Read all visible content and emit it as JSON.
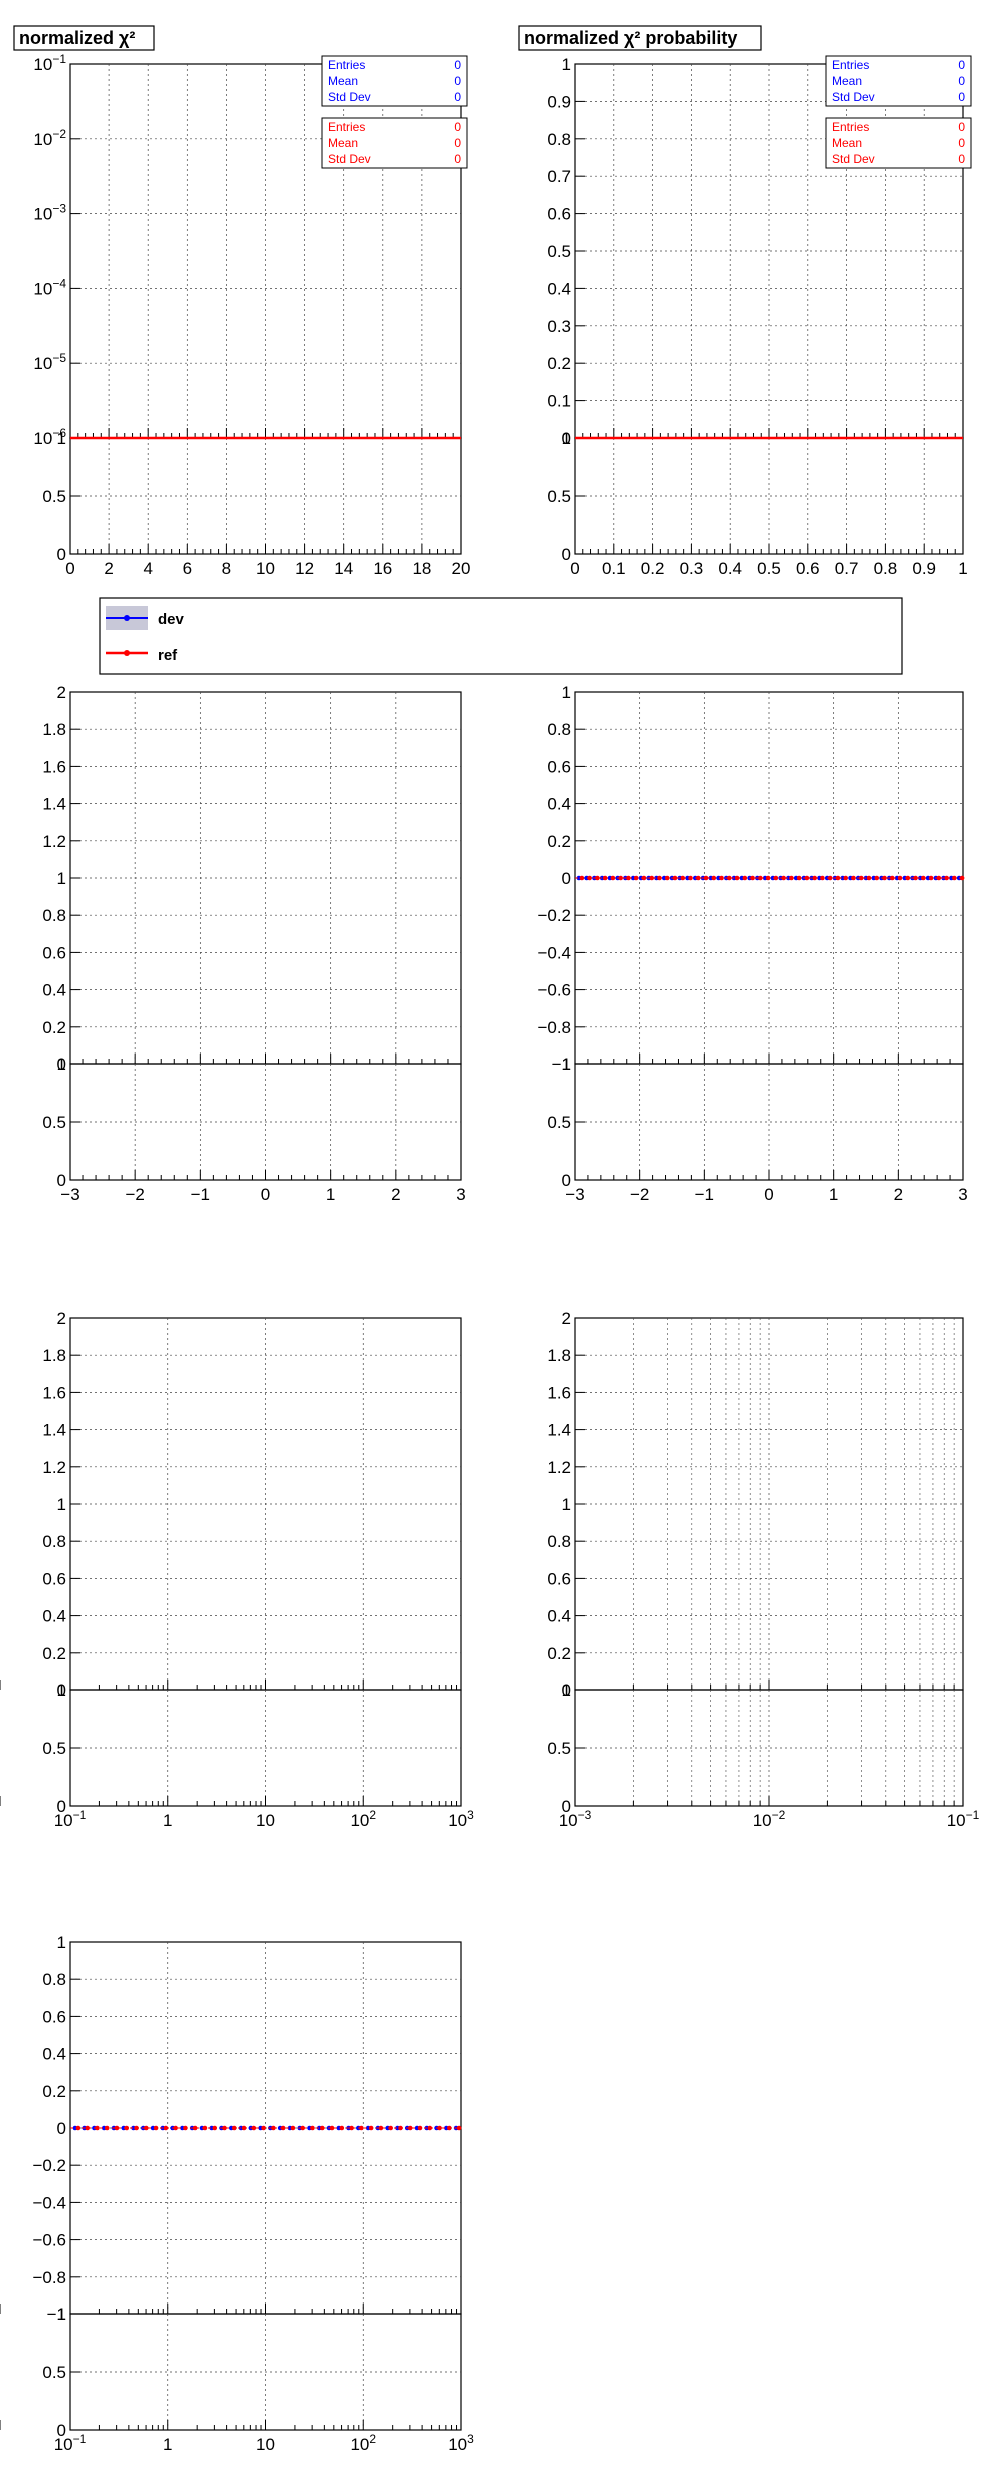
{
  "colors": {
    "dev": "#0000ff",
    "ref": "#ff0000",
    "dev_band": "#c8c8d8",
    "grid": "#444444",
    "frame": "#000000"
  },
  "titles": {
    "panel_1": "normalized χ²",
    "panel_2": "normalized χ² probability"
  },
  "stats_boxes": [
    {
      "panel": 1,
      "dev": [
        [
          "Entries",
          "0"
        ],
        [
          "Mean",
          "0"
        ],
        [
          "Std Dev",
          "0"
        ]
      ],
      "ref": [
        [
          "Entries",
          "0"
        ],
        [
          "Mean",
          "0"
        ],
        [
          "Std Dev",
          "0"
        ]
      ]
    },
    {
      "panel": 2,
      "dev": [
        [
          "Entries",
          "0"
        ],
        [
          "Mean",
          "0"
        ],
        [
          "Std Dev",
          "0"
        ]
      ],
      "ref": [
        [
          "Entries",
          "0"
        ],
        [
          "Mean",
          "0"
        ],
        [
          "Std Dev",
          "0"
        ]
      ]
    }
  ],
  "legend": {
    "entries": [
      {
        "label": "dev",
        "color": "#0000ff",
        "style": "band"
      },
      {
        "label": "ref",
        "color": "#ff0000",
        "style": "line"
      }
    ]
  },
  "chart_data": [
    {
      "id": "p1",
      "type": "line",
      "title": "normalized χ²",
      "x_scale": "linear",
      "xlim": [
        0,
        20
      ],
      "x_ticks": [
        "0",
        "2",
        "4",
        "6",
        "8",
        "10",
        "12",
        "14",
        "16",
        "18",
        "20"
      ],
      "y_scale": "log",
      "ylim": [
        1e-06,
        0.1
      ],
      "y_ticks": [
        "10⁻¹",
        "10⁻²",
        "10⁻³",
        "10⁻⁴",
        "10⁻⁵",
        "10⁻⁶"
      ],
      "ratio_ylim": [
        0,
        1
      ],
      "ratio_ticks": [
        "0",
        "0.5",
        "1"
      ],
      "grid": true,
      "series": [
        {
          "name": "ref",
          "line": "flat",
          "value": 1e-06
        }
      ]
    },
    {
      "id": "p2",
      "type": "line",
      "title": "normalized χ² probability",
      "x_scale": "linear",
      "xlim": [
        0,
        1
      ],
      "x_ticks": [
        "0",
        "0.1",
        "0.2",
        "0.3",
        "0.4",
        "0.5",
        "0.6",
        "0.7",
        "0.8",
        "0.9",
        "1"
      ],
      "y_scale": "linear",
      "ylim": [
        0,
        1
      ],
      "y_ticks": [
        "1",
        "0.9",
        "0.8",
        "0.7",
        "0.6",
        "0.5",
        "0.4",
        "0.3",
        "0.2",
        "0.1",
        "0"
      ],
      "ratio_ylim": [
        0,
        1
      ],
      "ratio_ticks": [
        "0",
        "0.5",
        "1"
      ],
      "grid": true,
      "series": [
        {
          "name": "ref",
          "line": "flat",
          "value": 0
        }
      ]
    },
    {
      "id": "p3",
      "type": "line",
      "x_scale": "linear",
      "xlim": [
        -3,
        3
      ],
      "x_ticks": [
        "−3",
        "−2",
        "−1",
        "0",
        "1",
        "2",
        "3"
      ],
      "y_scale": "linear",
      "ylim": [
        0,
        2
      ],
      "y_ticks": [
        "2",
        "1.8",
        "1.6",
        "1.4",
        "1.2",
        "1",
        "0.8",
        "0.6",
        "0.4",
        "0.2",
        "0"
      ],
      "ratio_ylim": [
        0,
        1
      ],
      "ratio_ticks": [
        "0",
        "0.5",
        "1"
      ],
      "grid": true,
      "series": []
    },
    {
      "id": "p4",
      "type": "scatter",
      "x_scale": "linear",
      "xlim": [
        -3,
        3
      ],
      "x_ticks": [
        "−3",
        "−2",
        "−1",
        "0",
        "1",
        "2",
        "3"
      ],
      "y_scale": "linear",
      "ylim": [
        -1,
        1
      ],
      "y_ticks": [
        "1",
        "0.8",
        "0.6",
        "0.4",
        "0.2",
        "0",
        "−0.2",
        "−0.4",
        "−0.6",
        "−0.8",
        "−1"
      ],
      "ratio_ylim": [
        0,
        1
      ],
      "ratio_ticks": [
        "0",
        "0.5",
        "1"
      ],
      "grid": true,
      "series": [
        {
          "name": "dev",
          "points": 50,
          "value": 0
        },
        {
          "name": "ref",
          "points": 50,
          "value": 0
        }
      ]
    },
    {
      "id": "p5",
      "type": "line",
      "x_scale": "log",
      "xlim": [
        0.1,
        1000
      ],
      "x_ticks": [
        "10⁻¹",
        "1",
        "10",
        "10²",
        "10³"
      ],
      "y_scale": "linear",
      "ylim": [
        0,
        2
      ],
      "y_ticks": [
        "2",
        "1.8",
        "1.6",
        "1.4",
        "1.2",
        "1",
        "0.8",
        "0.6",
        "0.4",
        "0.2",
        "0"
      ],
      "ratio_ylim": [
        0,
        1
      ],
      "ratio_ticks": [
        "0",
        "0.5",
        "1"
      ],
      "grid": true,
      "series": []
    },
    {
      "id": "p6",
      "type": "line",
      "x_scale": "log",
      "xlim": [
        0.001,
        0.1
      ],
      "x_ticks": [
        "10⁻³",
        "10⁻²",
        "10⁻¹"
      ],
      "y_scale": "linear",
      "ylim": [
        0,
        2
      ],
      "y_ticks": [
        "2",
        "1.8",
        "1.6",
        "1.4",
        "1.2",
        "1",
        "0.8",
        "0.6",
        "0.4",
        "0.2",
        "0"
      ],
      "ratio_ylim": [
        0,
        1
      ],
      "ratio_ticks": [
        "0",
        "0.5",
        "1"
      ],
      "grid": true,
      "series": []
    },
    {
      "id": "p7",
      "type": "scatter",
      "x_scale": "log",
      "xlim": [
        0.1,
        1000
      ],
      "x_ticks": [
        "10⁻¹",
        "1",
        "10",
        "10²",
        "10³"
      ],
      "y_scale": "linear",
      "ylim": [
        -1,
        1
      ],
      "y_ticks": [
        "1",
        "0.8",
        "0.6",
        "0.4",
        "0.2",
        "0",
        "−0.2",
        "−0.4",
        "−0.6",
        "−0.8",
        "−1"
      ],
      "ratio_ylim": [
        0,
        1
      ],
      "ratio_ticks": [
        "0",
        "0.5",
        "1"
      ],
      "grid": true,
      "series": [
        {
          "name": "dev",
          "points": 40,
          "value": 0
        },
        {
          "name": "ref",
          "points": 40,
          "value": 0
        }
      ]
    }
  ]
}
